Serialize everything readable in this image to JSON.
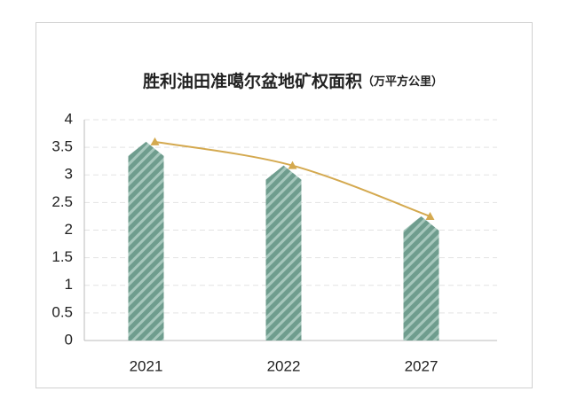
{
  "chart_data": {
    "type": "bar",
    "title": "胜利油田准噶尔盆地矿权面积",
    "unit": "（万平方公里）",
    "categories": [
      "2021",
      "2022",
      "2027"
    ],
    "series": [
      {
        "type": "bar",
        "color": "#7aa899",
        "values": [
          3.6,
          3.17,
          2.25
        ]
      },
      {
        "type": "line",
        "color": "#d4a94f",
        "values": [
          3.6,
          3.17,
          2.25
        ]
      }
    ],
    "ylim": [
      0,
      4
    ],
    "yticks": [
      0,
      0.5,
      1,
      1.5,
      2,
      2.5,
      3,
      3.5,
      4
    ],
    "grid": true
  }
}
